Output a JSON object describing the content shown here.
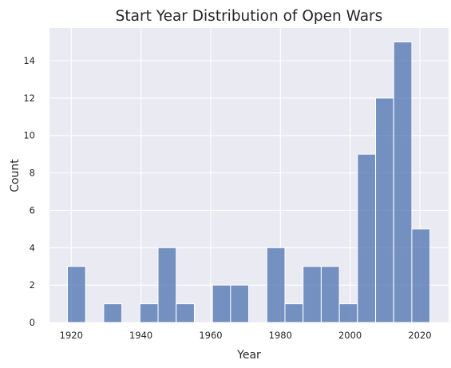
{
  "chart_data": {
    "type": "bar",
    "title": "Start Year Distribution of Open Wars",
    "xlabel": "Year",
    "ylabel": "Count",
    "xlim": [
      1913.75,
      2028.25
    ],
    "ylim": [
      0,
      15.75
    ],
    "x_ticks": [
      1920,
      1940,
      1960,
      1980,
      2000,
      2020
    ],
    "y_ticks": [
      0,
      2,
      4,
      6,
      8,
      10,
      12,
      14
    ],
    "grid": true,
    "legend": "none",
    "bar_color": "#4c72b0",
    "background": "#eaeaf2",
    "bins": [
      {
        "start": 1918.9,
        "end": 1924.1,
        "count": 3
      },
      {
        "start": 1924.1,
        "end": 1929.3,
        "count": 0
      },
      {
        "start": 1929.3,
        "end": 1934.5,
        "count": 1
      },
      {
        "start": 1934.5,
        "end": 1939.7,
        "count": 0
      },
      {
        "start": 1939.7,
        "end": 1944.9,
        "count": 1
      },
      {
        "start": 1944.9,
        "end": 1950.1,
        "count": 4
      },
      {
        "start": 1950.1,
        "end": 1955.3,
        "count": 1
      },
      {
        "start": 1955.3,
        "end": 1960.5,
        "count": 0
      },
      {
        "start": 1960.5,
        "end": 1965.7,
        "count": 2
      },
      {
        "start": 1965.7,
        "end": 1970.9,
        "count": 2
      },
      {
        "start": 1970.9,
        "end": 1976.1,
        "count": 0
      },
      {
        "start": 1976.1,
        "end": 1981.3,
        "count": 4
      },
      {
        "start": 1981.3,
        "end": 1986.5,
        "count": 1
      },
      {
        "start": 1986.5,
        "end": 1991.7,
        "count": 3
      },
      {
        "start": 1991.7,
        "end": 1996.9,
        "count": 3
      },
      {
        "start": 1996.9,
        "end": 2002.1,
        "count": 1
      },
      {
        "start": 2002.1,
        "end": 2007.3,
        "count": 9
      },
      {
        "start": 2007.3,
        "end": 2012.5,
        "count": 12
      },
      {
        "start": 2012.5,
        "end": 2017.7,
        "count": 15
      },
      {
        "start": 2017.7,
        "end": 2022.9,
        "count": 5
      }
    ]
  }
}
